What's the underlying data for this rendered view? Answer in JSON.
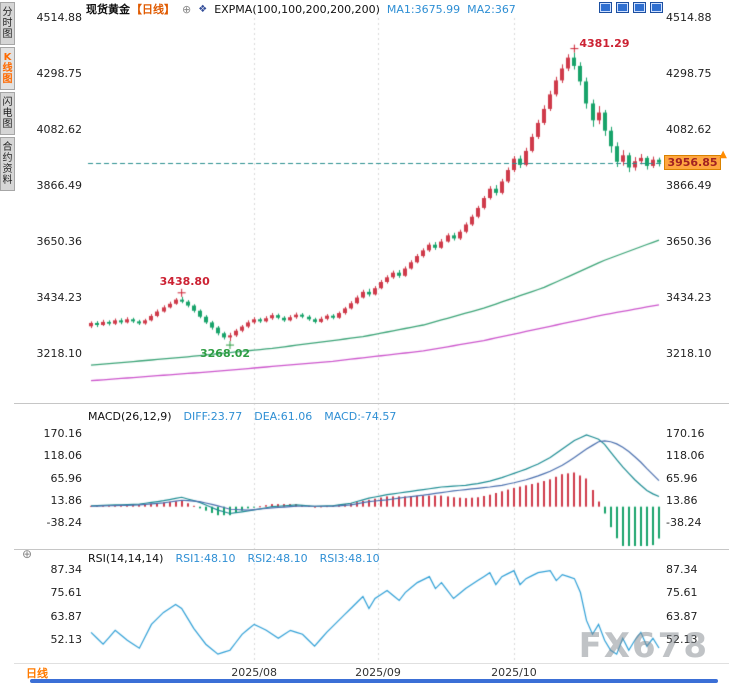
{
  "sidebar": {
    "tabs": [
      {
        "label": "分时图",
        "active": false
      },
      {
        "label": "K线图",
        "active": true
      },
      {
        "label": "闪电图",
        "active": false
      },
      {
        "label": "合约资料",
        "active": false
      }
    ]
  },
  "header": {
    "symbol": "现货黄金",
    "period_tag": "【日线】",
    "expma_label": "EXPMA(100,100,200,200,200)",
    "ma1": "MA1:3675.99",
    "ma2": "MA2:367"
  },
  "icons": {
    "circle_plus": "⊕",
    "indicator": "❖",
    "up_arrow": "▲"
  },
  "macd_header": {
    "name": "MACD(26,12,9)",
    "diff": "DIFF:23.77",
    "dea": "DEA:61.06",
    "macd": "MACD:-74.57"
  },
  "rsi_header": {
    "name": "RSI(14,14,14)",
    "rsi1": "RSI1:48.10",
    "rsi2": "RSI2:48.10",
    "rsi3": "RSI3:48.10"
  },
  "price_tag": {
    "value": "3956.85"
  },
  "footer": {
    "period": "日线"
  },
  "watermark": "FX678",
  "colors": {
    "up": "#cf3a4a",
    "down": "#17a36a",
    "last_price_line": "#2a8f8f",
    "grid": "#d8d8d8",
    "tag_bg": "#ffa640",
    "accent_text": "#2f8fd4"
  },
  "chart_data": [
    {
      "type": "candlestick",
      "title": "现货黄金 日线 (Spot Gold Daily)",
      "y_ticks": [
        4514.88,
        4298.75,
        4082.62,
        3866.49,
        3650.36,
        3434.23,
        3218.1
      ],
      "ylim": [
        3040,
        4515
      ],
      "x_labels": [
        {
          "label": "2025/08",
          "index": 27
        },
        {
          "label": "2025/09",
          "index": 47.5
        },
        {
          "label": "2025/10",
          "index": 70
        }
      ],
      "last_price": 3956.85,
      "annotations": [
        {
          "text": "4381.29",
          "index": 80,
          "price": 4381.29,
          "placement": "above-right",
          "color": "#cc2233"
        },
        {
          "text": "3438.80",
          "index": 15,
          "price": 3438.8,
          "placement": "above",
          "color": "#cc2233"
        },
        {
          "text": "3268.02",
          "index": 23,
          "price": 3268.02,
          "placement": "below",
          "color": "#2f9e44"
        }
      ],
      "ma_lines": [
        {
          "name": "EXPMA-fast",
          "color": "#3aa376",
          "points": [
            [
              0,
              3175
            ],
            [
              15,
              3205
            ],
            [
              30,
              3240
            ],
            [
              45,
              3285
            ],
            [
              55,
              3330
            ],
            [
              65,
              3395
            ],
            [
              75,
              3475
            ],
            [
              85,
              3580
            ],
            [
              94,
              3658
            ]
          ]
        },
        {
          "name": "EXPMA-slow",
          "color": "#cc55cc",
          "points": [
            [
              0,
              3115
            ],
            [
              20,
              3150
            ],
            [
              40,
              3190
            ],
            [
              55,
              3230
            ],
            [
              65,
              3270
            ],
            [
              75,
              3320
            ],
            [
              85,
              3370
            ],
            [
              94,
              3408
            ]
          ]
        }
      ],
      "candles": [
        [
          3325,
          3344,
          3318,
          3338
        ],
        [
          3338,
          3345,
          3322,
          3330
        ],
        [
          3330,
          3350,
          3326,
          3342
        ],
        [
          3342,
          3348,
          3328,
          3335
        ],
        [
          3335,
          3355,
          3330,
          3348
        ],
        [
          3348,
          3356,
          3333,
          3340
        ],
        [
          3340,
          3360,
          3336,
          3352
        ],
        [
          3352,
          3358,
          3338,
          3344
        ],
        [
          3344,
          3350,
          3330,
          3336
        ],
        [
          3336,
          3354,
          3331,
          3348
        ],
        [
          3348,
          3372,
          3344,
          3365
        ],
        [
          3365,
          3390,
          3360,
          3382
        ],
        [
          3382,
          3406,
          3378,
          3398
        ],
        [
          3398,
          3420,
          3394,
          3412
        ],
        [
          3412,
          3434,
          3408,
          3428
        ],
        [
          3428,
          3438.8,
          3414,
          3420
        ],
        [
          3420,
          3426,
          3398,
          3405
        ],
        [
          3405,
          3410,
          3378,
          3385
        ],
        [
          3385,
          3390,
          3356,
          3362
        ],
        [
          3362,
          3368,
          3334,
          3340
        ],
        [
          3340,
          3346,
          3312,
          3320
        ],
        [
          3320,
          3326,
          3290,
          3298
        ],
        [
          3298,
          3304,
          3274,
          3282
        ],
        [
          3282,
          3300,
          3268.02,
          3290
        ],
        [
          3290,
          3315,
          3284,
          3308
        ],
        [
          3308,
          3330,
          3302,
          3324
        ],
        [
          3324,
          3348,
          3318,
          3340
        ],
        [
          3340,
          3360,
          3334,
          3352
        ],
        [
          3352,
          3358,
          3338,
          3344
        ],
        [
          3344,
          3364,
          3340,
          3356
        ],
        [
          3356,
          3376,
          3350,
          3368
        ],
        [
          3368,
          3374,
          3352,
          3358
        ],
        [
          3358,
          3364,
          3342,
          3348
        ],
        [
          3348,
          3368,
          3344,
          3360
        ],
        [
          3360,
          3378,
          3354,
          3370
        ],
        [
          3370,
          3376,
          3356,
          3362
        ],
        [
          3362,
          3368,
          3346,
          3352
        ],
        [
          3352,
          3358,
          3336,
          3342
        ],
        [
          3342,
          3362,
          3338,
          3354
        ],
        [
          3354,
          3372,
          3348,
          3366
        ],
        [
          3366,
          3372,
          3352,
          3358
        ],
        [
          3358,
          3382,
          3354,
          3376
        ],
        [
          3376,
          3400,
          3370,
          3394
        ],
        [
          3394,
          3422,
          3390,
          3414
        ],
        [
          3414,
          3444,
          3410,
          3436
        ],
        [
          3436,
          3466,
          3432,
          3458
        ],
        [
          3458,
          3470,
          3440,
          3448
        ],
        [
          3448,
          3480,
          3444,
          3472
        ],
        [
          3472,
          3504,
          3468,
          3496
        ],
        [
          3496,
          3522,
          3490,
          3514
        ],
        [
          3514,
          3540,
          3508,
          3532
        ],
        [
          3532,
          3542,
          3512,
          3520
        ],
        [
          3520,
          3556,
          3516,
          3548
        ],
        [
          3548,
          3580,
          3544,
          3572
        ],
        [
          3572,
          3604,
          3568,
          3596
        ],
        [
          3596,
          3626,
          3590,
          3618
        ],
        [
          3618,
          3648,
          3612,
          3640
        ],
        [
          3640,
          3650,
          3620,
          3628
        ],
        [
          3628,
          3662,
          3624,
          3652
        ],
        [
          3652,
          3684,
          3648,
          3676
        ],
        [
          3676,
          3686,
          3656,
          3664
        ],
        [
          3664,
          3698,
          3658,
          3690
        ],
        [
          3690,
          3726,
          3684,
          3718
        ],
        [
          3718,
          3756,
          3712,
          3748
        ],
        [
          3748,
          3790,
          3742,
          3782
        ],
        [
          3782,
          3828,
          3776,
          3820
        ],
        [
          3820,
          3866,
          3814,
          3856
        ],
        [
          3856,
          3870,
          3830,
          3840
        ],
        [
          3840,
          3894,
          3834,
          3884
        ],
        [
          3884,
          3938,
          3878,
          3928
        ],
        [
          3928,
          3982,
          3920,
          3972
        ],
        [
          3972,
          3984,
          3936,
          3948
        ],
        [
          3948,
          4014,
          3942,
          4002
        ],
        [
          4002,
          4068,
          3996,
          4056
        ],
        [
          4056,
          4122,
          4048,
          4110
        ],
        [
          4110,
          4178,
          4102,
          4164
        ],
        [
          4164,
          4234,
          4156,
          4220
        ],
        [
          4220,
          4288,
          4212,
          4274
        ],
        [
          4274,
          4336,
          4264,
          4320
        ],
        [
          4320,
          4375,
          4310,
          4362
        ],
        [
          4362,
          4381.29,
          4316,
          4330
        ],
        [
          4330,
          4344,
          4255,
          4270
        ],
        [
          4270,
          4285,
          4165,
          4185
        ],
        [
          4185,
          4200,
          4095,
          4120
        ],
        [
          4120,
          4175,
          4105,
          4150
        ],
        [
          4150,
          4160,
          4060,
          4080
        ],
        [
          4080,
          4095,
          3995,
          4020
        ],
        [
          4020,
          4035,
          3940,
          3960
        ],
        [
          3960,
          4005,
          3945,
          3985
        ],
        [
          3985,
          3995,
          3920,
          3938
        ],
        [
          3938,
          3978,
          3926,
          3962
        ],
        [
          3962,
          3990,
          3950,
          3975
        ],
        [
          3975,
          3982,
          3930,
          3944
        ],
        [
          3944,
          3980,
          3936,
          3968
        ],
        [
          3968,
          3976,
          3942,
          3956.85
        ]
      ]
    },
    {
      "type": "macd",
      "params": "26,12,9",
      "y_ticks": [
        170.16,
        118.06,
        65.96,
        13.86,
        -38.24
      ],
      "ylim": [
        -90,
        184
      ],
      "histogram_rule": "2*(diff-dea)",
      "diff_color": "#1c8c93",
      "dea_color": "#4a6fae",
      "diff_points": [
        [
          0,
          2
        ],
        [
          8,
          6
        ],
        [
          12,
          14
        ],
        [
          15,
          22
        ],
        [
          18,
          10
        ],
        [
          21,
          -8
        ],
        [
          23,
          -16
        ],
        [
          26,
          -10
        ],
        [
          30,
          0
        ],
        [
          34,
          4
        ],
        [
          37,
          1
        ],
        [
          40,
          2
        ],
        [
          43,
          8
        ],
        [
          46,
          20
        ],
        [
          49,
          28
        ],
        [
          52,
          34
        ],
        [
          55,
          40
        ],
        [
          58,
          46
        ],
        [
          60,
          48
        ],
        [
          62,
          50
        ],
        [
          64,
          54
        ],
        [
          66,
          60
        ],
        [
          68,
          68
        ],
        [
          70,
          78
        ],
        [
          72,
          88
        ],
        [
          74,
          100
        ],
        [
          76,
          115
        ],
        [
          78,
          135
        ],
        [
          80,
          155
        ],
        [
          82,
          168
        ],
        [
          84,
          158
        ],
        [
          85,
          146
        ],
        [
          86,
          128
        ],
        [
          87,
          110
        ],
        [
          88,
          93
        ],
        [
          89,
          78
        ],
        [
          90,
          63
        ],
        [
          91,
          50
        ],
        [
          92,
          38
        ],
        [
          93,
          30
        ],
        [
          94,
          23.77
        ]
      ],
      "dea_points": [
        [
          0,
          1
        ],
        [
          8,
          4
        ],
        [
          12,
          9
        ],
        [
          15,
          15
        ],
        [
          18,
          12
        ],
        [
          21,
          2
        ],
        [
          23,
          -6
        ],
        [
          26,
          -8
        ],
        [
          30,
          -3
        ],
        [
          34,
          1
        ],
        [
          37,
          1
        ],
        [
          40,
          1
        ],
        [
          43,
          4
        ],
        [
          46,
          12
        ],
        [
          49,
          16
        ],
        [
          52,
          22
        ],
        [
          55,
          27
        ],
        [
          58,
          33
        ],
        [
          60,
          37
        ],
        [
          62,
          40
        ],
        [
          64,
          43
        ],
        [
          66,
          46
        ],
        [
          68,
          50
        ],
        [
          70,
          56
        ],
        [
          72,
          63
        ],
        [
          74,
          72
        ],
        [
          76,
          83
        ],
        [
          78,
          97
        ],
        [
          80,
          115
        ],
        [
          82,
          135
        ],
        [
          84,
          152
        ],
        [
          85,
          154
        ],
        [
          86,
          152
        ],
        [
          87,
          147
        ],
        [
          88,
          139
        ],
        [
          89,
          129
        ],
        [
          90,
          117
        ],
        [
          91,
          104
        ],
        [
          92,
          89
        ],
        [
          93,
          75
        ],
        [
          94,
          61.06
        ]
      ]
    },
    {
      "type": "rsi",
      "params": "14,14,14",
      "y_ticks": [
        87.34,
        75.61,
        63.87,
        52.13
      ],
      "ylim": [
        41,
        88
      ],
      "line_color": "#2e9fd6",
      "points": [
        [
          0,
          56
        ],
        [
          2,
          50
        ],
        [
          4,
          57
        ],
        [
          6,
          52
        ],
        [
          8,
          48
        ],
        [
          10,
          60
        ],
        [
          12,
          66
        ],
        [
          14,
          70
        ],
        [
          15,
          68
        ],
        [
          17,
          58
        ],
        [
          19,
          50
        ],
        [
          21,
          45
        ],
        [
          23,
          47
        ],
        [
          25,
          55
        ],
        [
          27,
          60
        ],
        [
          29,
          57
        ],
        [
          31,
          53
        ],
        [
          33,
          57
        ],
        [
          35,
          55
        ],
        [
          37,
          49
        ],
        [
          39,
          56
        ],
        [
          41,
          62
        ],
        [
          43,
          68
        ],
        [
          45,
          74
        ],
        [
          46,
          68
        ],
        [
          47,
          73
        ],
        [
          49,
          77
        ],
        [
          51,
          72
        ],
        [
          52,
          76
        ],
        [
          54,
          81
        ],
        [
          56,
          84
        ],
        [
          57,
          78
        ],
        [
          58,
          81
        ],
        [
          60,
          73
        ],
        [
          62,
          78
        ],
        [
          64,
          82
        ],
        [
          66,
          86
        ],
        [
          67,
          80
        ],
        [
          68,
          84
        ],
        [
          70,
          87
        ],
        [
          71,
          80
        ],
        [
          72,
          83
        ],
        [
          74,
          86
        ],
        [
          76,
          87
        ],
        [
          77,
          82
        ],
        [
          78,
          85
        ],
        [
          80,
          83
        ],
        [
          81,
          76
        ],
        [
          82,
          62
        ],
        [
          83,
          55
        ],
        [
          84,
          60
        ],
        [
          85,
          52
        ],
        [
          86,
          47
        ],
        [
          87,
          45
        ],
        [
          88,
          53
        ],
        [
          89,
          47
        ],
        [
          90,
          52
        ],
        [
          91,
          56
        ],
        [
          92,
          49
        ],
        [
          93,
          53
        ],
        [
          94,
          48.1
        ]
      ]
    }
  ]
}
